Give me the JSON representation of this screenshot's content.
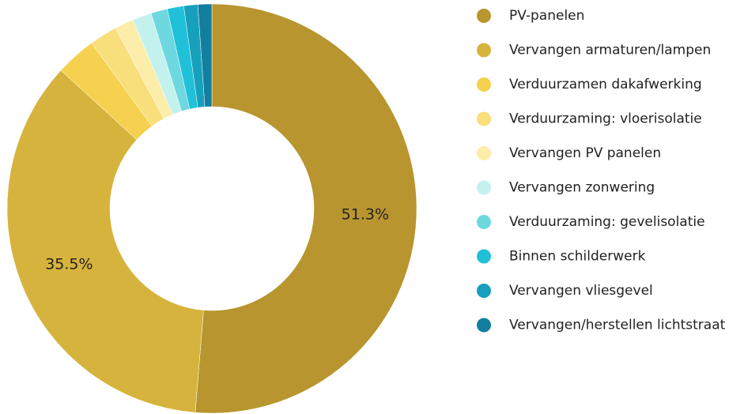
{
  "chart_data": {
    "type": "pie",
    "categories": [
      "PV-panelen",
      "Vervangen armaturen/lampen",
      "Verduurzamen dakafwerking",
      "Verduurzaming: vloerisolatie",
      "Vervangen PV panelen",
      "Vervangen zonwering",
      "Verduurzaming: gevelisolatie",
      "Binnen schilderwerk",
      "Vervangen vliesgevel",
      "Vervangen/herstellen lichtstraat"
    ],
    "values": [
      51.3,
      35.5,
      3.2,
      2.2,
      1.5,
      1.5,
      1.3,
      1.3,
      1.1,
      1.1
    ],
    "value_labels": [
      "51.3%",
      "35.5%",
      null,
      null,
      null,
      null,
      null,
      null,
      null,
      null
    ],
    "colors": [
      "#b8952e",
      "#d6b33c",
      "#f5d14f",
      "#f9df7c",
      "#fcedaa",
      "#c3f2ee",
      "#6ed8e0",
      "#20c0d9",
      "#16a0bb",
      "#127f9f"
    ],
    "legend": "right"
  }
}
